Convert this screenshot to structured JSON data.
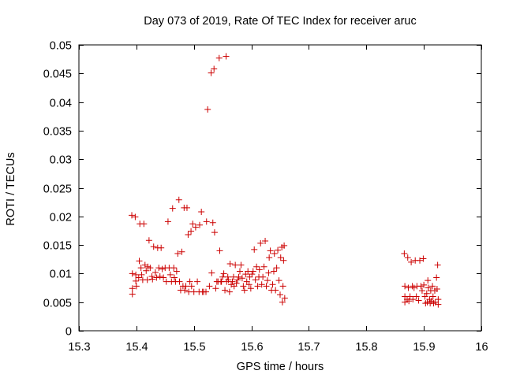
{
  "chart_data": {
    "type": "scatter",
    "title": "Day 073 of 2019, Rate Of TEC Index for receiver aruc",
    "xlabel": "GPS time / hours",
    "ylabel": "ROTI / TECUs",
    "xlim": [
      15.3,
      16
    ],
    "ylim": [
      0,
      0.05
    ],
    "xticks": [
      15.3,
      15.4,
      15.5,
      15.6,
      15.7,
      15.8,
      15.9,
      16
    ],
    "xtick_labels": [
      "15.3",
      "15.4",
      "15.5",
      "15.6",
      "15.7",
      "15.8",
      "15.9",
      "16"
    ],
    "yticks": [
      0,
      0.005,
      0.01,
      0.015,
      0.02,
      0.025,
      0.03,
      0.035,
      0.04,
      0.045,
      0.05
    ],
    "ytick_labels": [
      "0",
      "0.005",
      "0.01",
      "0.015",
      "0.02",
      "0.025",
      "0.03",
      "0.035",
      "0.04",
      "0.045",
      "0.05"
    ],
    "marker": "plus",
    "grid": false,
    "legend": false,
    "colors": {
      "series": "#cc0000",
      "axes": "#000000",
      "background": "#ffffff"
    },
    "series": [
      {
        "name": "ROTI",
        "points": [
          [
            15.392,
            0.0202
          ],
          [
            15.393,
            0.01
          ],
          [
            15.393,
            0.0074
          ],
          [
            15.393,
            0.0064
          ],
          [
            15.398,
            0.0199
          ],
          [
            15.399,
            0.0098
          ],
          [
            15.399,
            0.0087
          ],
          [
            15.4,
            0.0078
          ],
          [
            15.404,
            0.0093
          ],
          [
            15.405,
            0.0122
          ],
          [
            15.406,
            0.0187
          ],
          [
            15.408,
            0.011
          ],
          [
            15.409,
            0.0098
          ],
          [
            15.411,
            0.0089
          ],
          [
            15.413,
            0.0187
          ],
          [
            15.415,
            0.0115
          ],
          [
            15.417,
            0.0105
          ],
          [
            15.419,
            0.0089
          ],
          [
            15.42,
            0.0112
          ],
          [
            15.422,
            0.0158
          ],
          [
            15.424,
            0.011
          ],
          [
            15.427,
            0.0095
          ],
          [
            15.428,
            0.009
          ],
          [
            15.43,
            0.0147
          ],
          [
            15.433,
            0.0102
          ],
          [
            15.435,
            0.0093
          ],
          [
            15.437,
            0.0145
          ],
          [
            15.439,
            0.011
          ],
          [
            15.441,
            0.0095
          ],
          [
            15.443,
            0.0145
          ],
          [
            15.445,
            0.0108
          ],
          [
            15.447,
            0.0093
          ],
          [
            15.45,
            0.011
          ],
          [
            15.452,
            0.0086
          ],
          [
            15.455,
            0.0191
          ],
          [
            15.457,
            0.011
          ],
          [
            15.459,
            0.0098
          ],
          [
            15.461,
            0.0086
          ],
          [
            15.463,
            0.0214
          ],
          [
            15.465,
            0.011
          ],
          [
            15.466,
            0.0093
          ],
          [
            15.468,
            0.0086
          ],
          [
            15.47,
            0.0104
          ],
          [
            15.472,
            0.0135
          ],
          [
            15.474,
            0.0229
          ],
          [
            15.475,
            0.0086
          ],
          [
            15.477,
            0.0071
          ],
          [
            15.479,
            0.0138
          ],
          [
            15.481,
            0.0078
          ],
          [
            15.483,
            0.0215
          ],
          [
            15.484,
            0.0071
          ],
          [
            15.486,
            0.0078
          ],
          [
            15.488,
            0.0215
          ],
          [
            15.49,
            0.0168
          ],
          [
            15.491,
            0.0068
          ],
          [
            15.493,
            0.0086
          ],
          [
            15.495,
            0.0174
          ],
          [
            15.496,
            0.0078
          ],
          [
            15.498,
            0.0187
          ],
          [
            15.5,
            0.0068
          ],
          [
            15.503,
            0.0181
          ],
          [
            15.506,
            0.0086
          ],
          [
            15.509,
            0.0068
          ],
          [
            15.51,
            0.0185
          ],
          [
            15.513,
            0.0208
          ],
          [
            15.515,
            0.0068
          ],
          [
            15.517,
            0.0068
          ],
          [
            15.521,
            0.0068
          ],
          [
            15.522,
            0.0191
          ],
          [
            15.524,
            0.0387
          ],
          [
            15.527,
            0.0078
          ],
          [
            15.53,
            0.0451
          ],
          [
            15.531,
            0.0101
          ],
          [
            15.533,
            0.0189
          ],
          [
            15.535,
            0.0458
          ],
          [
            15.536,
            0.0172
          ],
          [
            15.538,
            0.0074
          ],
          [
            15.54,
            0.0086
          ],
          [
            15.542,
            0.0086
          ],
          [
            15.544,
            0.0477
          ],
          [
            15.545,
            0.014
          ],
          [
            15.547,
            0.0086
          ],
          [
            15.548,
            0.0086
          ],
          [
            15.55,
            0.0094
          ],
          [
            15.552,
            0.01
          ],
          [
            15.554,
            0.0071
          ],
          [
            15.556,
            0.048
          ],
          [
            15.557,
            0.0086
          ],
          [
            15.559,
            0.0094
          ],
          [
            15.56,
            0.0089
          ],
          [
            15.562,
            0.0068
          ],
          [
            15.563,
            0.0117
          ],
          [
            15.565,
            0.0081
          ],
          [
            15.567,
            0.0086
          ],
          [
            15.569,
            0.0094
          ],
          [
            15.57,
            0.0078
          ],
          [
            15.572,
            0.0115
          ],
          [
            15.574,
            0.0083
          ],
          [
            15.576,
            0.0089
          ],
          [
            15.578,
            0.0094
          ],
          [
            15.58,
            0.0104
          ],
          [
            15.582,
            0.0115
          ],
          [
            15.584,
            0.0092
          ],
          [
            15.586,
            0.0078
          ],
          [
            15.588,
            0.0071
          ],
          [
            15.59,
            0.0099
          ],
          [
            15.592,
            0.0086
          ],
          [
            15.594,
            0.0104
          ],
          [
            15.596,
            0.0081
          ],
          [
            15.597,
            0.0094
          ],
          [
            15.599,
            0.0074
          ],
          [
            15.601,
            0.0099
          ],
          [
            15.603,
            0.0104
          ],
          [
            15.605,
            0.0142
          ],
          [
            15.607,
            0.0089
          ],
          [
            15.609,
            0.0112
          ],
          [
            15.611,
            0.0078
          ],
          [
            15.613,
            0.0094
          ],
          [
            15.614,
            0.0107
          ],
          [
            15.616,
            0.0153
          ],
          [
            15.618,
            0.0081
          ],
          [
            15.62,
            0.0094
          ],
          [
            15.622,
            0.0112
          ],
          [
            15.624,
            0.0157
          ],
          [
            15.626,
            0.0078
          ],
          [
            15.628,
            0.0088
          ],
          [
            15.63,
            0.0101
          ],
          [
            15.631,
            0.0128
          ],
          [
            15.633,
            0.014
          ],
          [
            15.635,
            0.0071
          ],
          [
            15.637,
            0.0081
          ],
          [
            15.639,
            0.0104
          ],
          [
            15.64,
            0.0135
          ],
          [
            15.642,
            0.0071
          ],
          [
            15.644,
            0.011
          ],
          [
            15.646,
            0.0141
          ],
          [
            15.648,
            0.0088
          ],
          [
            15.65,
            0.0063
          ],
          [
            15.651,
            0.0128
          ],
          [
            15.653,
            0.0146
          ],
          [
            15.654,
            0.005
          ],
          [
            15.655,
            0.0078
          ],
          [
            15.656,
            0.0123
          ],
          [
            15.657,
            0.0149
          ],
          [
            15.658,
            0.0057
          ],
          [
            15.866,
            0.0135
          ],
          [
            15.867,
            0.0078
          ],
          [
            15.867,
            0.006
          ],
          [
            15.867,
            0.005
          ],
          [
            15.871,
            0.0055
          ],
          [
            15.872,
            0.0128
          ],
          [
            15.873,
            0.0075
          ],
          [
            15.874,
            0.0052
          ],
          [
            15.876,
            0.006
          ],
          [
            15.878,
            0.012
          ],
          [
            15.88,
            0.0078
          ],
          [
            15.881,
            0.0055
          ],
          [
            15.883,
            0.0075
          ],
          [
            15.885,
            0.0123
          ],
          [
            15.887,
            0.006
          ],
          [
            15.888,
            0.0078
          ],
          [
            15.891,
            0.0053
          ],
          [
            15.893,
            0.0123
          ],
          [
            15.895,
            0.0078
          ],
          [
            15.897,
            0.007
          ],
          [
            15.899,
            0.0126
          ],
          [
            15.9,
            0.008
          ],
          [
            15.902,
            0.006
          ],
          [
            15.903,
            0.0048
          ],
          [
            15.905,
            0.0065
          ],
          [
            15.906,
            0.005
          ],
          [
            15.907,
            0.0088
          ],
          [
            15.908,
            0.0075
          ],
          [
            15.91,
            0.0055
          ],
          [
            15.911,
            0.0048
          ],
          [
            15.912,
            0.007
          ],
          [
            15.913,
            0.0052
          ],
          [
            15.915,
            0.0078
          ],
          [
            15.916,
            0.006
          ],
          [
            15.917,
            0.0048
          ],
          [
            15.919,
            0.007
          ],
          [
            15.92,
            0.005
          ],
          [
            15.922,
            0.0093
          ],
          [
            15.923,
            0.0073
          ],
          [
            15.924,
            0.0115
          ],
          [
            15.925,
            0.0055
          ],
          [
            15.925,
            0.0046
          ]
        ]
      }
    ]
  }
}
